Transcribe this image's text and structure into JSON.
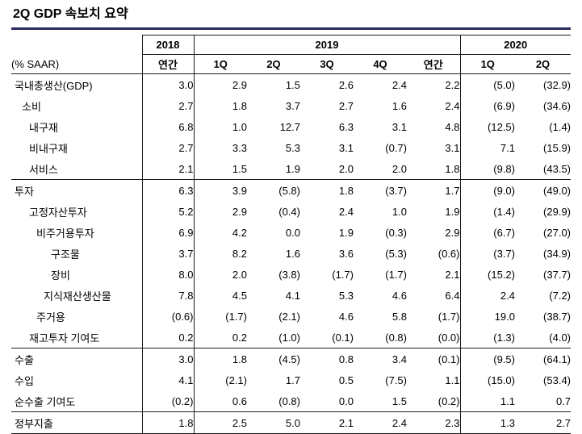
{
  "page": {
    "title": "2Q GDP 속보치 요약",
    "accent_color": "#28285e"
  },
  "table": {
    "unit_label": "(% SAAR)",
    "year_groups": [
      {
        "label": "2018",
        "span": 1
      },
      {
        "label": "2019",
        "span": 5
      },
      {
        "label": "2020",
        "span": 2
      }
    ],
    "col_headers": [
      "연간",
      "1Q",
      "2Q",
      "3Q",
      "4Q",
      "연간",
      "1Q",
      "2Q"
    ],
    "rows": [
      {
        "label": "국내총생산(GDP)",
        "indent": 0,
        "rule_above": false,
        "values": [
          "3.0",
          "2.9",
          "1.5",
          "2.6",
          "2.4",
          "2.2",
          "(5.0)",
          "(32.9)"
        ]
      },
      {
        "label": "소비",
        "indent": 1,
        "rule_above": false,
        "values": [
          "2.7",
          "1.8",
          "3.7",
          "2.7",
          "1.6",
          "2.4",
          "(6.9)",
          "(34.6)"
        ]
      },
      {
        "label": "내구재",
        "indent": 2,
        "rule_above": false,
        "values": [
          "6.8",
          "1.0",
          "12.7",
          "6.3",
          "3.1",
          "4.8",
          "(12.5)",
          "(1.4)"
        ]
      },
      {
        "label": "비내구재",
        "indent": 2,
        "rule_above": false,
        "values": [
          "2.7",
          "3.3",
          "5.3",
          "3.1",
          "(0.7)",
          "3.1",
          "7.1",
          "(15.9)"
        ]
      },
      {
        "label": "서비스",
        "indent": 2,
        "rule_above": false,
        "values": [
          "2.1",
          "1.5",
          "1.9",
          "2.0",
          "2.0",
          "1.8",
          "(9.8)",
          "(43.5)"
        ]
      },
      {
        "label": "투자",
        "indent": 0,
        "rule_above": true,
        "values": [
          "6.3",
          "3.9",
          "(5.8)",
          "1.8",
          "(3.7)",
          "1.7",
          "(9.0)",
          "(49.0)"
        ]
      },
      {
        "label": "고정자산투자",
        "indent": 2,
        "rule_above": false,
        "values": [
          "5.2",
          "2.9",
          "(0.4)",
          "2.4",
          "1.0",
          "1.9",
          "(1.4)",
          "(29.9)"
        ]
      },
      {
        "label": "비주거용투자",
        "indent": 3,
        "rule_above": false,
        "values": [
          "6.9",
          "4.2",
          "0.0",
          "1.9",
          "(0.3)",
          "2.9",
          "(6.7)",
          "(27.0)"
        ]
      },
      {
        "label": "구조물",
        "indent": 5,
        "rule_above": false,
        "values": [
          "3.7",
          "8.2",
          "1.6",
          "3.6",
          "(5.3)",
          "(0.6)",
          "(3.7)",
          "(34.9)"
        ]
      },
      {
        "label": "장비",
        "indent": 5,
        "rule_above": false,
        "values": [
          "8.0",
          "2.0",
          "(3.8)",
          "(1.7)",
          "(1.7)",
          "2.1",
          "(15.2)",
          "(37.7)"
        ]
      },
      {
        "label": "지식재산생산물",
        "indent": 4,
        "rule_above": false,
        "values": [
          "7.8",
          "4.5",
          "4.1",
          "5.3",
          "4.6",
          "6.4",
          "2.4",
          "(7.2)"
        ]
      },
      {
        "label": "주거용",
        "indent": 3,
        "rule_above": false,
        "values": [
          "(0.6)",
          "(1.7)",
          "(2.1)",
          "4.6",
          "5.8",
          "(1.7)",
          "19.0",
          "(38.7)"
        ]
      },
      {
        "label": "재고투자 기여도",
        "indent": 2,
        "rule_above": false,
        "values": [
          "0.2",
          "0.2",
          "(1.0)",
          "(0.1)",
          "(0.8)",
          "(0.0)",
          "(1.3)",
          "(4.0)"
        ]
      },
      {
        "label": "수출",
        "indent": 0,
        "rule_above": true,
        "values": [
          "3.0",
          "1.8",
          "(4.5)",
          "0.8",
          "3.4",
          "(0.1)",
          "(9.5)",
          "(64.1)"
        ]
      },
      {
        "label": "수입",
        "indent": 0,
        "rule_above": false,
        "values": [
          "4.1",
          "(2.1)",
          "1.7",
          "0.5",
          "(7.5)",
          "1.1",
          "(15.0)",
          "(53.4)"
        ]
      },
      {
        "label": "순수출 기여도",
        "indent": 0,
        "rule_above": false,
        "values": [
          "(0.2)",
          "0.6",
          "(0.8)",
          "0.0",
          "1.5",
          "(0.2)",
          "1.1",
          "0.7"
        ]
      },
      {
        "label": "정부지출",
        "indent": 0,
        "rule_above": true,
        "values": [
          "1.8",
          "2.5",
          "5.0",
          "2.1",
          "2.4",
          "2.3",
          "1.3",
          "2.7"
        ]
      }
    ]
  },
  "chart_data": {
    "type": "table",
    "title": "2Q GDP 속보치 요약",
    "unit": "% SAAR",
    "note": "parenthesized values in the screenshot denote negatives",
    "columns": [
      "2018 연간",
      "2019 1Q",
      "2019 2Q",
      "2019 3Q",
      "2019 4Q",
      "2019 연간",
      "2020 1Q",
      "2020 2Q"
    ],
    "rows": [
      {
        "label": "국내총생산(GDP)",
        "values": [
          3.0,
          2.9,
          1.5,
          2.6,
          2.4,
          2.2,
          -5.0,
          -32.9
        ]
      },
      {
        "label": "소비",
        "values": [
          2.7,
          1.8,
          3.7,
          2.7,
          1.6,
          2.4,
          -6.9,
          -34.6
        ]
      },
      {
        "label": "내구재",
        "values": [
          6.8,
          1.0,
          12.7,
          6.3,
          3.1,
          4.8,
          -12.5,
          -1.4
        ]
      },
      {
        "label": "비내구재",
        "values": [
          2.7,
          3.3,
          5.3,
          3.1,
          -0.7,
          3.1,
          7.1,
          -15.9
        ]
      },
      {
        "label": "서비스",
        "values": [
          2.1,
          1.5,
          1.9,
          2.0,
          2.0,
          1.8,
          -9.8,
          -43.5
        ]
      },
      {
        "label": "투자",
        "values": [
          6.3,
          3.9,
          -5.8,
          1.8,
          -3.7,
          1.7,
          -9.0,
          -49.0
        ]
      },
      {
        "label": "고정자산투자",
        "values": [
          5.2,
          2.9,
          -0.4,
          2.4,
          1.0,
          1.9,
          -1.4,
          -29.9
        ]
      },
      {
        "label": "비주거용투자",
        "values": [
          6.9,
          4.2,
          0.0,
          1.9,
          -0.3,
          2.9,
          -6.7,
          -27.0
        ]
      },
      {
        "label": "구조물",
        "values": [
          3.7,
          8.2,
          1.6,
          3.6,
          -5.3,
          -0.6,
          -3.7,
          -34.9
        ]
      },
      {
        "label": "장비",
        "values": [
          8.0,
          2.0,
          -3.8,
          -1.7,
          -1.7,
          2.1,
          -15.2,
          -37.7
        ]
      },
      {
        "label": "지식재산생산물",
        "values": [
          7.8,
          4.5,
          4.1,
          5.3,
          4.6,
          6.4,
          2.4,
          -7.2
        ]
      },
      {
        "label": "주거용",
        "values": [
          -0.6,
          -1.7,
          -2.1,
          4.6,
          5.8,
          -1.7,
          19.0,
          -38.7
        ]
      },
      {
        "label": "재고투자 기여도",
        "values": [
          0.2,
          0.2,
          -1.0,
          -0.1,
          -0.8,
          -0.0,
          -1.3,
          -4.0
        ]
      },
      {
        "label": "수출",
        "values": [
          3.0,
          1.8,
          -4.5,
          0.8,
          3.4,
          -0.1,
          -9.5,
          -64.1
        ]
      },
      {
        "label": "수입",
        "values": [
          4.1,
          -2.1,
          1.7,
          0.5,
          -7.5,
          1.1,
          -15.0,
          -53.4
        ]
      },
      {
        "label": "순수출 기여도",
        "values": [
          -0.2,
          0.6,
          -0.8,
          0.0,
          1.5,
          -0.2,
          1.1,
          0.7
        ]
      },
      {
        "label": "정부지출",
        "values": [
          1.8,
          2.5,
          5.0,
          2.1,
          2.4,
          2.3,
          1.3,
          2.7
        ]
      }
    ]
  }
}
